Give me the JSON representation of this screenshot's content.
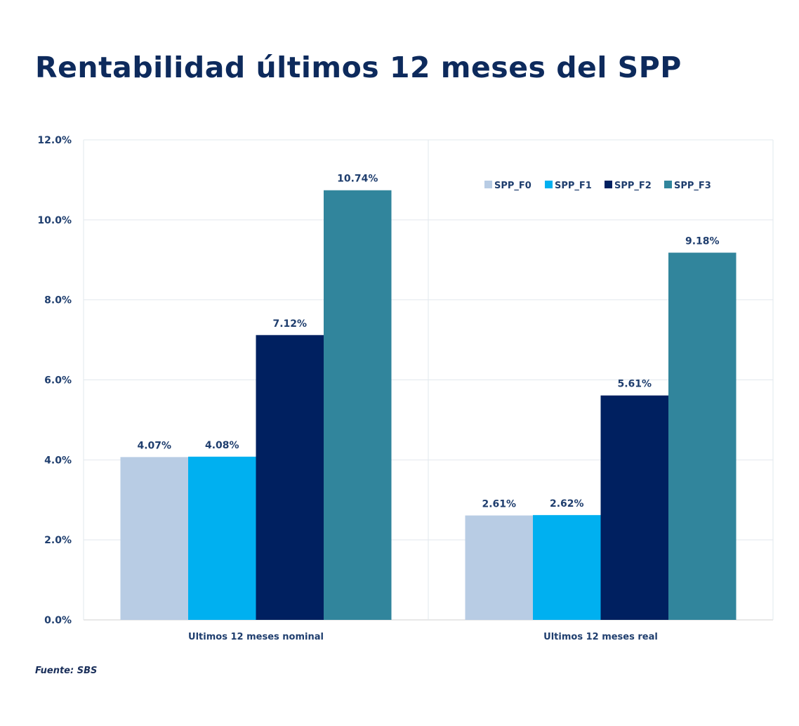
{
  "title": "Rentabilidad últimos 12 meses del SPP",
  "source": "Fuente: SBS",
  "chart_data": {
    "type": "bar",
    "categories": [
      "Ultimos 12 meses nominal",
      "Ultimos 12 meses real"
    ],
    "series": [
      {
        "name": "SPP_F0",
        "color": "#b8cce4",
        "values": [
          4.07,
          2.61
        ],
        "labels": [
          "4.07%",
          "2.61%"
        ]
      },
      {
        "name": "SPP_F1",
        "color": "#00b0f0",
        "values": [
          4.08,
          2.62
        ],
        "labels": [
          "4.08%",
          "2.62%"
        ]
      },
      {
        "name": "SPP_F2",
        "color": "#002060",
        "values": [
          7.12,
          5.61
        ],
        "labels": [
          "7.12%",
          "5.61%"
        ]
      },
      {
        "name": "SPP_F3",
        "color": "#31859c",
        "values": [
          10.74,
          9.18
        ],
        "labels": [
          "10.74%",
          "9.18%"
        ]
      }
    ],
    "yticks": [
      "0.0%",
      "2.0%",
      "4.0%",
      "6.0%",
      "8.0%",
      "10.0%",
      "12.0%"
    ],
    "ylim": [
      0,
      12
    ],
    "grid": true,
    "legend": "top-right"
  }
}
